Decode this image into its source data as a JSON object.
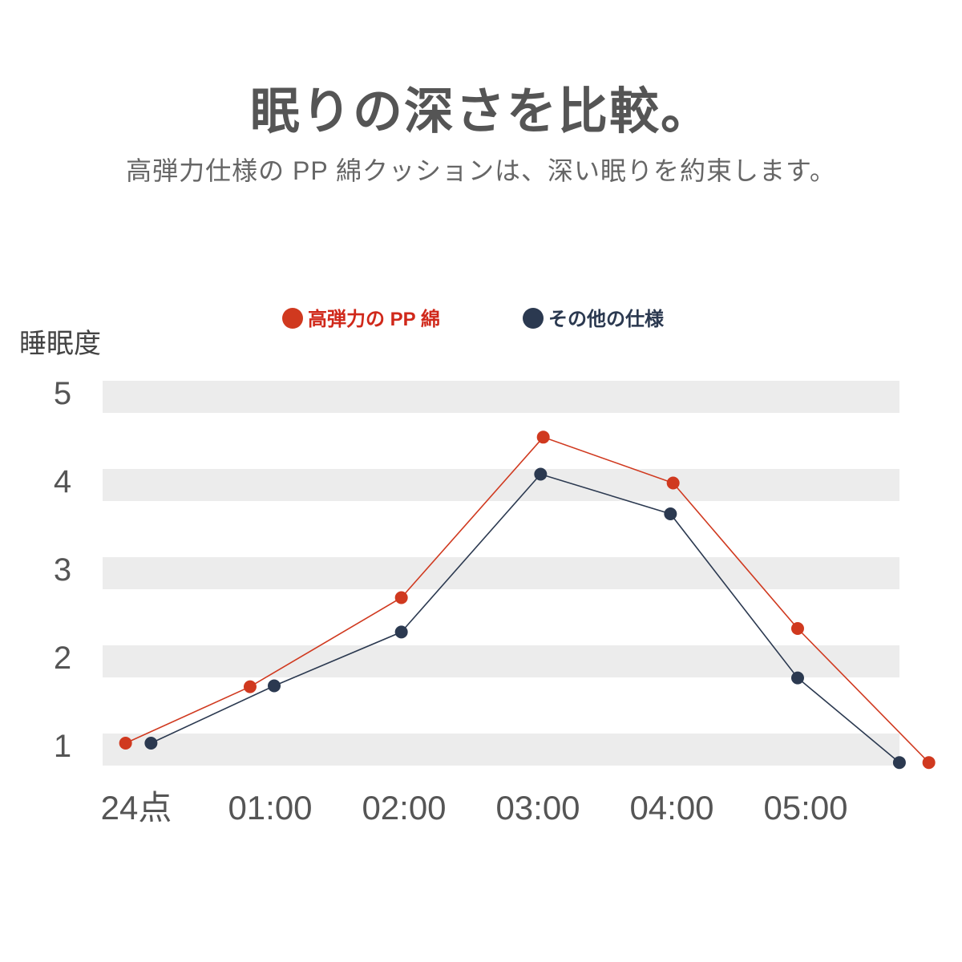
{
  "header": {
    "title": "眠りの深さを比較。",
    "subtitle": "高弾力仕様の PP 綿クッションは、深い眠りを約束します。"
  },
  "chart_data": {
    "type": "line",
    "ylabel": "睡眠度",
    "xlabel": "",
    "ylim": [
      0.6,
      5.2
    ],
    "yticks": [
      "1",
      "2",
      "3",
      "4",
      "5"
    ],
    "xtick_labels": [
      "24点",
      "01:00",
      "02:00",
      "03:00",
      "04:00",
      "05:00"
    ],
    "grid": "alternating horizontal bands",
    "legend_position": "top-center",
    "series": [
      {
        "name": "高弾力の PP 綿",
        "color": "#d0391f",
        "x": [
          -0.08,
          0.85,
          1.98,
          3.04,
          4.01,
          4.94,
          5.92
        ],
        "values": [
          1.0,
          1.64,
          2.65,
          4.47,
          3.95,
          2.3,
          0.78
        ]
      },
      {
        "name": "その他の仕様",
        "color": "#2b3950",
        "x": [
          0.11,
          1.03,
          1.98,
          3.02,
          3.99,
          4.94,
          5.7
        ],
        "values": [
          1.0,
          1.65,
          2.26,
          4.05,
          3.6,
          1.74,
          0.78
        ]
      }
    ]
  }
}
